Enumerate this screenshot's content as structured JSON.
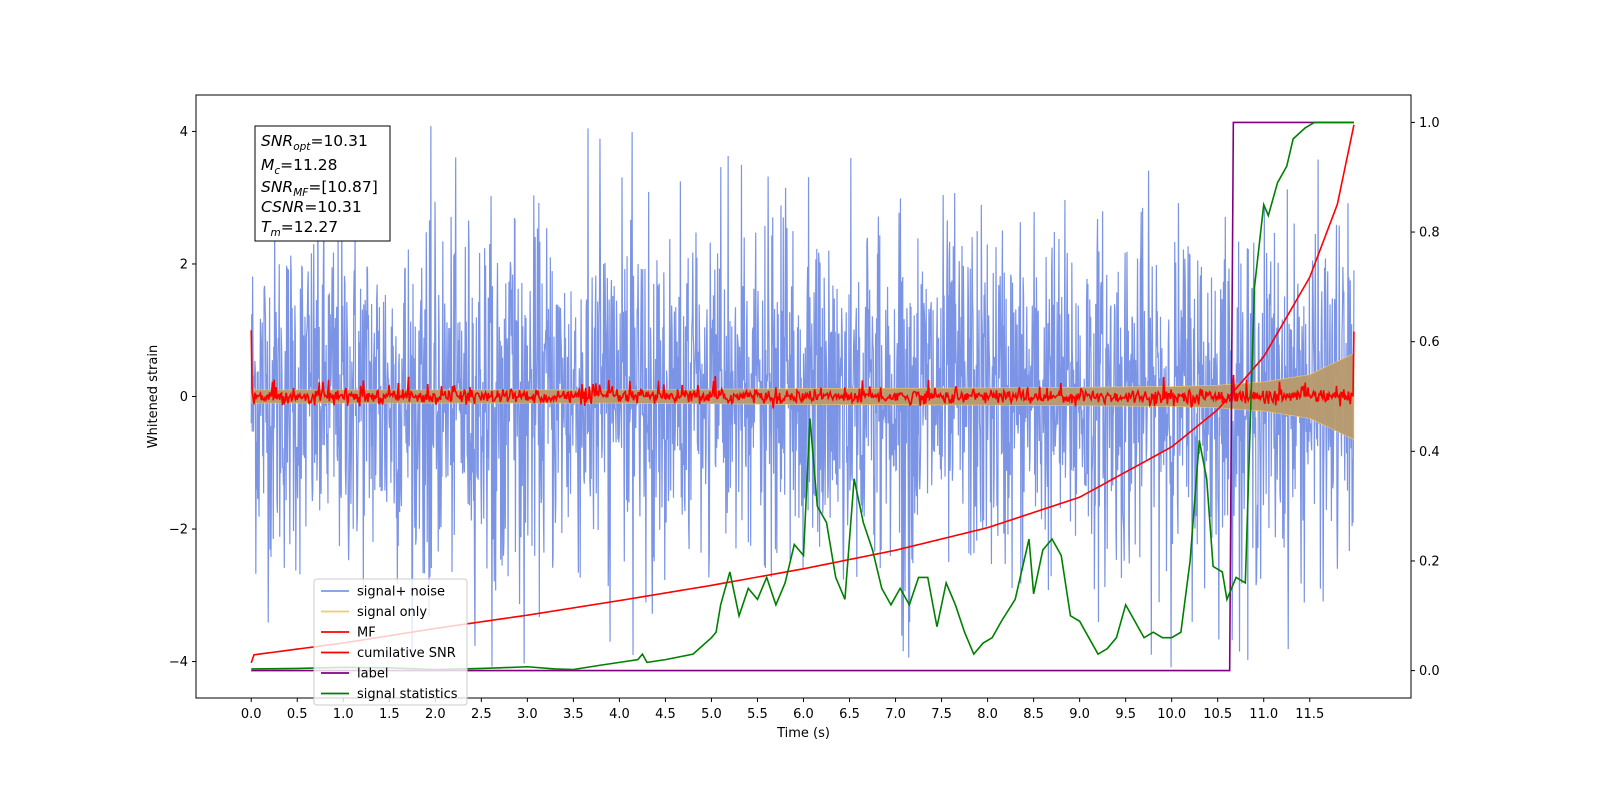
{
  "chart_data": {
    "type": "line",
    "title": "",
    "xlabel": "Time (s)",
    "ylabel": "Whitened strain",
    "xlim": [
      -0.6,
      12.6
    ],
    "ylim": [
      -4.55,
      4.55
    ],
    "y2lim": [
      -0.05,
      1.05
    ],
    "xticks": [
      "0.0",
      "0.5",
      "1.0",
      "1.5",
      "2.0",
      "2.5",
      "3.0",
      "3.5",
      "4.0",
      "4.5",
      "5.0",
      "5.5",
      "6.0",
      "6.5",
      "7.0",
      "7.5",
      "8.0",
      "8.5",
      "9.0",
      "9.5",
      "10.0",
      "10.5",
      "11.0",
      "11.5"
    ],
    "xtick_values": [
      0,
      0.5,
      1,
      1.5,
      2,
      2.5,
      3,
      3.5,
      4,
      4.5,
      5,
      5.5,
      6,
      6.5,
      7,
      7.5,
      8,
      8.5,
      9,
      9.5,
      10,
      10.5,
      11,
      11.5
    ],
    "yticks": [
      "−4",
      "−2",
      "0",
      "2",
      "4"
    ],
    "ytick_values": [
      -4,
      -2,
      0,
      2,
      4
    ],
    "y2ticks": [
      "0.0",
      "0.2",
      "0.4",
      "0.6",
      "0.8",
      "1.0"
    ],
    "y2tick_values": [
      0,
      0.2,
      0.4,
      0.6,
      0.8,
      1.0
    ],
    "grid": false,
    "legend_position": "lower-left",
    "annotation": {
      "snr_opt": "10.31",
      "mc": "11.28",
      "snr_mf": "[10.87]",
      "csnr": "10.31",
      "tm": "12.27"
    },
    "series": [
      {
        "name": "signal+ noise",
        "axis": "left",
        "color": "#7b94e6",
        "noise_std": 1.3,
        "range": [
          -4.1,
          4.1
        ]
      },
      {
        "name": "signal only",
        "axis": "left",
        "color": "#f5c96b",
        "envelope": {
          "x": [
            0,
            2,
            4,
            6,
            8,
            9,
            10,
            10.5,
            11,
            11.5,
            11.98
          ],
          "amplitude": [
            0.1,
            0.1,
            0.1,
            0.12,
            0.13,
            0.14,
            0.15,
            0.17,
            0.22,
            0.33,
            0.65
          ]
        }
      },
      {
        "name": "MF",
        "axis": "left",
        "color": "#ff0000",
        "start_value": 1.0,
        "end_value": 0.98,
        "baseline": 0.0
      },
      {
        "name": "cumilative SNR",
        "axis": "left",
        "color": "#ff0000",
        "x": [
          0,
          0.02,
          1,
          2,
          3,
          4,
          5,
          6,
          7,
          8,
          9,
          10,
          10.5,
          11,
          11.5,
          11.8,
          11.98
        ],
        "y": [
          -4.02,
          -3.9,
          -3.72,
          -3.5,
          -3.3,
          -3.08,
          -2.85,
          -2.6,
          -2.32,
          -1.98,
          -1.52,
          -0.76,
          -0.2,
          0.6,
          1.8,
          2.9,
          4.1
        ]
      },
      {
        "name": "label",
        "axis": "right",
        "color": "#800080",
        "x": [
          0,
          10.63,
          10.67,
          11.98
        ],
        "y": [
          0,
          0,
          1,
          1
        ]
      },
      {
        "name": "signal statistics",
        "axis": "right",
        "color": "#008000",
        "x": [
          0,
          0.5,
          1,
          1.5,
          2,
          2.5,
          2.7,
          3,
          3.3,
          3.5,
          3.8,
          4,
          4.2,
          4.25,
          4.3,
          4.5,
          4.8,
          5,
          5.05,
          5.1,
          5.2,
          5.3,
          5.4,
          5.5,
          5.6,
          5.7,
          5.8,
          5.9,
          6,
          6.07,
          6.15,
          6.25,
          6.35,
          6.45,
          6.55,
          6.65,
          6.75,
          6.85,
          6.95,
          7.05,
          7.15,
          7.25,
          7.35,
          7.45,
          7.55,
          7.65,
          7.75,
          7.85,
          7.95,
          8.05,
          8.15,
          8.3,
          8.45,
          8.5,
          8.6,
          8.7,
          8.8,
          8.9,
          9.0,
          9.1,
          9.2,
          9.3,
          9.4,
          9.5,
          9.6,
          9.7,
          9.8,
          9.9,
          10.0,
          10.1,
          10.2,
          10.3,
          10.38,
          10.45,
          10.55,
          10.6,
          10.7,
          10.8,
          10.9,
          11.0,
          11.05,
          11.15,
          11.25,
          11.32,
          11.45,
          11.55,
          11.7,
          11.98
        ],
        "y": [
          0.003,
          0.004,
          0.006,
          0.005,
          0.002,
          0.004,
          0.005,
          0.007,
          0.003,
          0.002,
          0.01,
          0.015,
          0.02,
          0.03,
          0.015,
          0.02,
          0.03,
          0.06,
          0.07,
          0.12,
          0.18,
          0.1,
          0.15,
          0.13,
          0.17,
          0.12,
          0.16,
          0.23,
          0.21,
          0.46,
          0.3,
          0.27,
          0.17,
          0.13,
          0.35,
          0.27,
          0.22,
          0.15,
          0.12,
          0.15,
          0.12,
          0.17,
          0.17,
          0.08,
          0.16,
          0.12,
          0.07,
          0.03,
          0.05,
          0.06,
          0.09,
          0.13,
          0.24,
          0.14,
          0.22,
          0.24,
          0.21,
          0.1,
          0.09,
          0.06,
          0.03,
          0.04,
          0.06,
          0.12,
          0.09,
          0.06,
          0.07,
          0.06,
          0.06,
          0.07,
          0.2,
          0.42,
          0.35,
          0.19,
          0.18,
          0.13,
          0.17,
          0.16,
          0.7,
          0.85,
          0.83,
          0.89,
          0.92,
          0.97,
          0.99,
          1.0,
          1.0,
          1.0
        ]
      }
    ]
  }
}
